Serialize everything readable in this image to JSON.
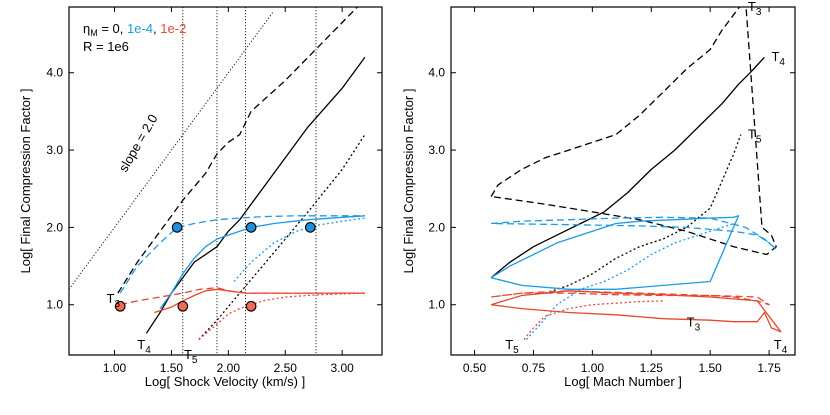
{
  "colors": {
    "black": "#000000",
    "blue": "#1a9be6",
    "red": "#e8472e",
    "marker_edge": "#000000"
  },
  "chart_data": [
    {
      "type": "line",
      "panel": "left",
      "xlabel": "Log[ Shock Velocity (km/s) ]",
      "ylabel": "Log[ Final Compression Factor ]",
      "xlim": [
        0.6,
        3.35
      ],
      "ylim": [
        0.35,
        4.85
      ],
      "xticks": [
        "1.00",
        "1.50",
        "2.00",
        "2.50",
        "3.00"
      ],
      "xtick_values": [
        1.0,
        1.5,
        2.0,
        2.5,
        3.0
      ],
      "yticks": [
        "1.0",
        "2.0",
        "3.0",
        "4.0"
      ],
      "ytick_values": [
        1.0,
        2.0,
        3.0,
        4.0
      ],
      "legend": {
        "line1_prefix": "η",
        "line1_sub": "M",
        "line1_eq": " = 0, ",
        "blue_text": "1e-4",
        "sep": ", ",
        "red_text": "1e-2",
        "line2": "R = 1e6"
      },
      "slope_label": "slope = 2.0",
      "vlines": [
        1.6,
        1.9,
        2.15,
        2.77
      ],
      "series": [
        {
          "name": "η=0 T3",
          "color": "black",
          "dash": "dashed",
          "x": [
            1.03,
            1.2,
            1.4,
            1.6,
            1.8,
            1.9,
            2.0,
            2.1,
            2.2,
            2.5,
            2.8,
            3.0,
            3.2
          ],
          "y": [
            1.15,
            1.55,
            1.95,
            2.35,
            2.7,
            2.95,
            3.1,
            3.2,
            3.5,
            3.9,
            4.35,
            4.65,
            4.95
          ]
        },
        {
          "name": "η=0 T4",
          "color": "black",
          "dash": "solid",
          "x": [
            1.28,
            1.4,
            1.5,
            1.6,
            1.7,
            1.8,
            1.9,
            2.0,
            2.1,
            2.3,
            2.5,
            2.7,
            3.0,
            3.2
          ],
          "y": [
            0.63,
            0.9,
            1.15,
            1.35,
            1.55,
            1.65,
            1.75,
            1.95,
            2.1,
            2.5,
            2.9,
            3.3,
            3.8,
            4.2
          ]
        },
        {
          "name": "η=0 T5",
          "color": "black",
          "dash": "dotted",
          "x": [
            1.74,
            1.9,
            2.1,
            2.3,
            2.5,
            2.7,
            3.0,
            3.2
          ],
          "y": [
            0.55,
            0.8,
            1.15,
            1.5,
            1.85,
            2.2,
            2.75,
            3.2
          ]
        },
        {
          "name": "η=1e-4 T3",
          "color": "blue",
          "dash": "dashed",
          "x": [
            1.05,
            1.2,
            1.4,
            1.55,
            1.7,
            1.9,
            2.1,
            2.3,
            2.6,
            3.2
          ],
          "y": [
            1.15,
            1.5,
            1.8,
            2.0,
            2.05,
            2.1,
            2.12,
            2.14,
            2.15,
            2.15
          ]
        },
        {
          "name": "η=1e-4 T4",
          "color": "blue",
          "dash": "solid",
          "x": [
            1.4,
            1.5,
            1.6,
            1.7,
            1.8,
            1.9,
            2.0,
            2.1,
            2.2,
            2.4,
            2.7,
            3.2
          ],
          "y": [
            0.95,
            1.15,
            1.4,
            1.6,
            1.75,
            1.85,
            1.9,
            1.95,
            2.0,
            2.05,
            2.1,
            2.15
          ]
        },
        {
          "name": "η=1e-4 T5",
          "color": "blue",
          "dash": "dotted",
          "x": [
            2.05,
            2.2,
            2.4,
            2.6,
            2.75,
            3.0,
            3.2
          ],
          "y": [
            1.3,
            1.55,
            1.8,
            1.95,
            2.02,
            2.08,
            2.12
          ]
        },
        {
          "name": "η=1e-2 T3",
          "color": "red",
          "dash": "dashed",
          "x": [
            1.05,
            1.2,
            1.4,
            1.6,
            1.75,
            1.9,
            2.0,
            2.15,
            2.4,
            2.8,
            3.2
          ],
          "y": [
            1.0,
            1.05,
            1.1,
            1.15,
            1.2,
            1.22,
            1.18,
            1.15,
            1.15,
            1.15,
            1.15
          ]
        },
        {
          "name": "η=1e-2 T4",
          "color": "red",
          "dash": "solid",
          "x": [
            1.35,
            1.5,
            1.6,
            1.7,
            1.8,
            1.9,
            2.0,
            2.15,
            2.3,
            2.6,
            3.2
          ],
          "y": [
            0.9,
            0.97,
            1.05,
            1.12,
            1.18,
            1.2,
            1.18,
            1.15,
            1.15,
            1.15,
            1.15
          ]
        },
        {
          "name": "η=1e-2 T5",
          "color": "red",
          "dash": "dotted",
          "x": [
            1.74,
            1.9,
            2.0,
            2.1,
            2.2,
            2.3,
            2.5,
            2.8,
            3.2
          ],
          "y": [
            0.55,
            0.75,
            0.88,
            0.95,
            1.0,
            1.05,
            1.1,
            1.13,
            1.15
          ]
        },
        {
          "name": "slope 2.0 reference",
          "color": "black",
          "dash": "dotted-fine",
          "x": [
            0.6,
            2.4
          ],
          "y": [
            1.2,
            4.8
          ]
        }
      ],
      "markers": [
        {
          "x": 1.55,
          "y": 2.0,
          "color": "blue"
        },
        {
          "x": 2.2,
          "y": 2.0,
          "color": "blue"
        },
        {
          "x": 2.72,
          "y": 2.0,
          "color": "blue"
        },
        {
          "x": 1.05,
          "y": 0.98,
          "color": "red"
        },
        {
          "x": 1.6,
          "y": 0.98,
          "color": "red"
        },
        {
          "x": 2.2,
          "y": 0.98,
          "color": "red"
        }
      ],
      "annotations": [
        {
          "base": "T",
          "sub": "3",
          "x": 0.93,
          "y": 1.02
        },
        {
          "base": "T",
          "sub": "4",
          "x": 1.2,
          "y": 0.43
        },
        {
          "base": "T",
          "sub": "5",
          "x": 1.61,
          "y": 0.3
        }
      ]
    },
    {
      "type": "line",
      "panel": "right",
      "xlabel": "Log[ Mach Number ]",
      "ylabel": "Log[ Final Compression Factor ]",
      "xlim": [
        0.4,
        1.86
      ],
      "ylim": [
        0.35,
        4.85
      ],
      "xticks": [
        "0.50",
        "0.75",
        "1.00",
        "1.25",
        "1.50",
        "1.75"
      ],
      "xtick_values": [
        0.5,
        0.75,
        1.0,
        1.25,
        1.5,
        1.75
      ],
      "yticks": [
        "1.0",
        "2.0",
        "3.0",
        "4.0"
      ],
      "ytick_values": [
        1.0,
        2.0,
        3.0,
        4.0
      ],
      "series": [
        {
          "name": "η=0 T3",
          "color": "black",
          "dash": "dashed",
          "x": [
            0.57,
            0.6,
            0.7,
            0.8,
            0.9,
            1.0,
            1.1,
            1.2,
            1.3,
            1.4,
            1.5,
            1.55,
            1.6,
            1.65,
            1.72,
            1.76,
            1.78,
            1.74,
            1.6,
            1.4,
            1.2,
            1.0,
            0.8,
            0.57
          ],
          "y": [
            2.4,
            2.55,
            2.75,
            2.9,
            3.0,
            3.1,
            3.2,
            3.45,
            3.75,
            4.05,
            4.3,
            4.55,
            4.75,
            4.95,
            2.0,
            1.9,
            1.75,
            1.65,
            1.75,
            1.95,
            2.1,
            2.2,
            2.3,
            2.4
          ]
        },
        {
          "name": "η=0 T4",
          "color": "black",
          "dash": "solid",
          "x": [
            0.57,
            0.65,
            0.75,
            0.85,
            0.95,
            1.05,
            1.15,
            1.25,
            1.35,
            1.45,
            1.55,
            1.62,
            1.67,
            1.7,
            1.73
          ],
          "y": [
            1.35,
            1.55,
            1.75,
            1.9,
            2.05,
            2.2,
            2.45,
            2.75,
            3.0,
            3.3,
            3.6,
            3.85,
            4.0,
            4.1,
            4.2
          ]
        },
        {
          "name": "η=0 T5",
          "color": "black",
          "dash": "dotted",
          "x": [
            0.8,
            0.9,
            1.0,
            1.1,
            1.2,
            1.3,
            1.4,
            1.5,
            1.55,
            1.6,
            1.63
          ],
          "y": [
            1.15,
            1.25,
            1.4,
            1.6,
            1.75,
            1.85,
            2.0,
            2.25,
            2.6,
            2.95,
            3.2
          ]
        },
        {
          "name": "η=1e-4 T3",
          "color": "blue",
          "dash": "dashed",
          "x": [
            0.57,
            0.7,
            0.9,
            1.1,
            1.3,
            1.5,
            1.65,
            1.73,
            1.78,
            1.75,
            1.7,
            1.6,
            1.4,
            1.2,
            1.0,
            0.8,
            0.57
          ],
          "y": [
            2.05,
            2.08,
            2.1,
            2.12,
            2.13,
            2.12,
            2.0,
            1.85,
            1.72,
            1.8,
            1.9,
            1.95,
            2.0,
            2.02,
            2.03,
            2.04,
            2.05
          ]
        },
        {
          "name": "η=1e-4 T4",
          "color": "blue",
          "dash": "solid",
          "x": [
            0.57,
            0.65,
            0.75,
            0.85,
            0.95,
            1.0,
            1.05,
            1.1,
            1.2,
            1.35,
            1.5,
            1.6,
            1.62,
            1.5,
            1.3,
            1.1,
            0.9,
            0.7,
            0.57
          ],
          "y": [
            1.35,
            1.5,
            1.65,
            1.8,
            1.9,
            1.95,
            2.0,
            2.05,
            2.08,
            2.1,
            2.12,
            2.13,
            2.15,
            1.3,
            1.25,
            1.2,
            1.2,
            1.25,
            1.35
          ]
        },
        {
          "name": "η=1e-4 T5",
          "color": "blue",
          "dash": "dotted",
          "x": [
            0.72,
            0.78,
            0.85,
            0.95,
            1.05,
            1.15,
            1.25,
            1.35,
            1.45,
            1.55,
            1.6
          ],
          "y": [
            0.55,
            0.75,
            1.0,
            1.2,
            1.3,
            1.45,
            1.65,
            1.8,
            1.9,
            2.0,
            2.05
          ]
        },
        {
          "name": "η=1e-2 T3",
          "color": "red",
          "dash": "dashed",
          "x": [
            0.57,
            0.7,
            0.9,
            1.1,
            1.3,
            1.5,
            1.6,
            1.7,
            1.75,
            1.7,
            1.5,
            1.3,
            1.1,
            0.9,
            0.7,
            0.57
          ],
          "y": [
            1.1,
            1.15,
            1.15,
            1.13,
            1.12,
            1.12,
            1.1,
            1.05,
            1.0,
            1.1,
            1.12,
            1.14,
            1.16,
            1.18,
            1.15,
            1.1
          ]
        },
        {
          "name": "η=1e-2 T4",
          "color": "red",
          "dash": "solid",
          "x": [
            0.57,
            0.7,
            0.9,
            1.1,
            1.3,
            1.5,
            1.6,
            1.7,
            1.73,
            1.76,
            1.8,
            1.7,
            1.5,
            1.3,
            1.1,
            0.9,
            0.7,
            0.57
          ],
          "y": [
            1.0,
            0.95,
            0.9,
            0.87,
            0.82,
            0.8,
            0.78,
            0.78,
            0.9,
            0.7,
            0.65,
            1.05,
            1.1,
            1.13,
            1.15,
            1.18,
            1.12,
            1.0
          ]
        },
        {
          "name": "η=1e-2 T5",
          "color": "red",
          "dash": "dotted",
          "x": [
            0.71,
            0.75,
            0.8,
            0.9,
            1.0,
            1.1,
            1.2,
            1.3
          ],
          "y": [
            0.55,
            0.7,
            0.85,
            0.95,
            1.0,
            1.02,
            1.04,
            1.05
          ]
        }
      ],
      "annotations": [
        {
          "base": "T",
          "sub": "3",
          "x": 1.66,
          "y": 4.8
        },
        {
          "base": "T",
          "sub": "4",
          "x": 1.76,
          "y": 4.15
        },
        {
          "base": "T",
          "sub": "5",
          "x": 1.66,
          "y": 3.15
        },
        {
          "base": "T",
          "sub": "3",
          "x": 1.4,
          "y": 0.72
        },
        {
          "base": "T",
          "sub": "4",
          "x": 1.77,
          "y": 0.43
        },
        {
          "base": "T",
          "sub": "5",
          "x": 0.63,
          "y": 0.43
        }
      ]
    }
  ]
}
